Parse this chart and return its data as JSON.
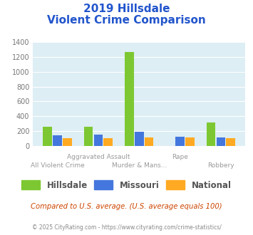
{
  "title_line1": "2019 Hillsdale",
  "title_line2": "Violent Crime Comparison",
  "title_color": "#2255cc",
  "categories": [
    "All Violent Crime",
    "Aggravated Assault",
    "Murder & Mans...",
    "Rape",
    "Robbery"
  ],
  "x_labels_row1": [
    "",
    "Aggravated Assault",
    "",
    "Rape",
    ""
  ],
  "x_labels_row2": [
    "All Violent Crime",
    "",
    "Murder & Mans...",
    "",
    "Robbery"
  ],
  "hillsdale": [
    255,
    255,
    1270,
    0,
    310
  ],
  "missouri": [
    145,
    155,
    190,
    120,
    110
  ],
  "national": [
    105,
    105,
    110,
    108,
    107
  ],
  "hillsdale_color": "#7dc832",
  "missouri_color": "#4477dd",
  "national_color": "#ffaa22",
  "bg_color": "#ddeef4",
  "ylim": [
    0,
    1400
  ],
  "yticks": [
    0,
    200,
    400,
    600,
    800,
    1000,
    1200,
    1400
  ],
  "legend_labels": [
    "Hillsdale",
    "Missouri",
    "National"
  ],
  "footer_text1": "Compared to U.S. average. (U.S. average equals 100)",
  "footer_text2": "© 2025 CityRating.com - https://www.cityrating.com/crime-statistics/",
  "footer_color1": "#cc4400",
  "footer_color2": "#888888",
  "bar_width": 0.22,
  "bar_gap": 0.02
}
